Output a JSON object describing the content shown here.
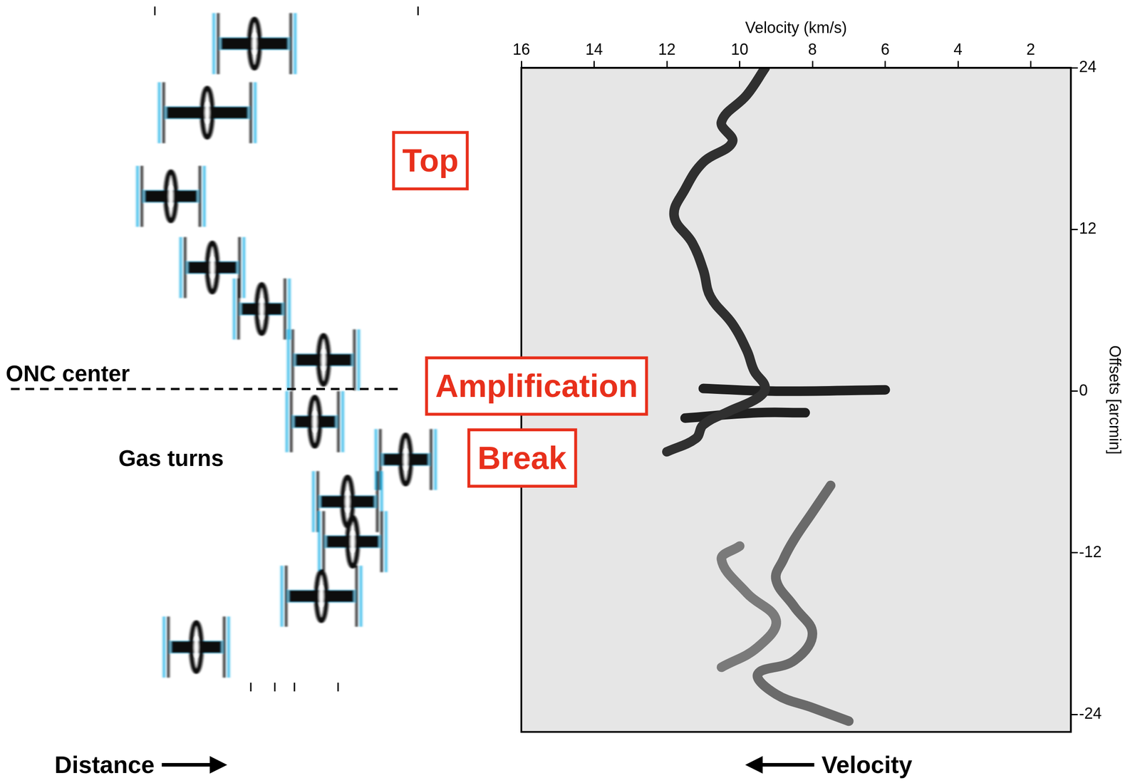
{
  "chart_data": {
    "type": "line",
    "x_label": "Velocity (km/s)",
    "y_label": "Offsets [arcmin]",
    "xlim": [
      16,
      0.9
    ],
    "xticks": [
      16,
      14,
      12,
      10,
      8,
      6,
      4,
      2
    ],
    "ylim": [
      -25.3,
      24
    ],
    "yticks": [
      -24,
      -12,
      0,
      12,
      24
    ],
    "grid": false,
    "series": [
      {
        "color": "#303030",
        "x": [
          9.3,
          9.8,
          10.5,
          10.2,
          11,
          11.5,
          11.8,
          11.3,
          11,
          10.8,
          10.2,
          9.8,
          9.6,
          9.3,
          9.5,
          10.3,
          11,
          11.2,
          12
        ],
        "y": [
          24,
          22,
          20,
          18.5,
          17,
          15,
          13,
          11,
          9,
          7,
          5,
          3,
          1.5,
          0.3,
          -0.5,
          -1.5,
          -2.5,
          -3.5,
          -4.5
        ]
      },
      {
        "color": "#202020",
        "x": [
          11,
          9,
          6
        ],
        "y": [
          0.2,
          0,
          0.1
        ]
      },
      {
        "color": "#202020",
        "x": [
          11.5,
          9.5,
          8.2
        ],
        "y": [
          -2,
          -1.6,
          -1.6
        ]
      },
      {
        "color": "#6a6a6a",
        "x": [
          7.5,
          8,
          8.5,
          8.8,
          9,
          8.5,
          8,
          8.5,
          9.5,
          9,
          8,
          7
        ],
        "y": [
          -7,
          -9,
          -11,
          -12.5,
          -14,
          -16,
          -18,
          -20,
          -21,
          -22.5,
          -23.5,
          -24.5
        ]
      },
      {
        "color": "#7a7a7a",
        "x": [
          10,
          10.5,
          9.8,
          9,
          9.5,
          10.5
        ],
        "y": [
          -11.5,
          -12.5,
          -15,
          -17,
          -19,
          -20.5
        ]
      }
    ]
  },
  "annotations": {
    "top": "Top",
    "amplification": "Amplification",
    "break": "Break",
    "onc_center": "ONC center",
    "gas_turns": "Gas turns",
    "distance": "Distance",
    "velocity": "Velocity"
  }
}
